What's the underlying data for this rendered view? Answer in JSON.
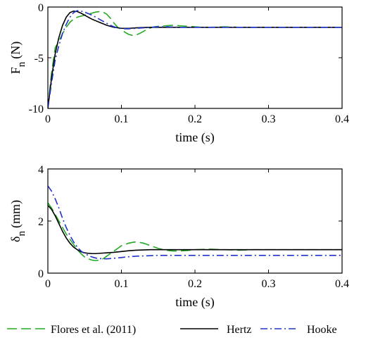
{
  "chart_data": [
    {
      "type": "line",
      "xlabel": "time (s)",
      "ylabel_main": "F",
      "ylabel_sub": "n",
      "ylabel_unit": "(N)",
      "xlim": [
        0,
        0.4
      ],
      "ylim": [
        -10,
        0
      ],
      "xticks": [
        0,
        0.1,
        0.2,
        0.3,
        0.4
      ],
      "xtick_labels": [
        "0",
        "0.1",
        "0.2",
        "0.3",
        "0.4"
      ],
      "yticks": [
        -10,
        -5,
        0
      ],
      "ytick_labels": [
        "-10",
        "-5",
        "0"
      ],
      "grid": false,
      "series": [
        {
          "name": "Flores et al. (2011)",
          "color": "#22aa22",
          "dash": "dashed",
          "x": [
            0,
            0.005,
            0.01,
            0.015,
            0.02,
            0.025,
            0.03,
            0.035,
            0.04,
            0.045,
            0.05,
            0.055,
            0.06,
            0.065,
            0.07,
            0.075,
            0.08,
            0.085,
            0.09,
            0.095,
            0.1,
            0.105,
            0.11,
            0.115,
            0.12,
            0.125,
            0.13,
            0.135,
            0.14,
            0.145,
            0.15,
            0.16,
            0.17,
            0.18,
            0.19,
            0.2,
            0.21,
            0.22,
            0.23,
            0.24,
            0.25,
            0.26,
            0.28,
            0.3,
            0.35,
            0.4
          ],
          "y": [
            -10,
            -6.5,
            -4.0,
            -3.4,
            -2.6,
            -2.0,
            -1.5,
            -1.2,
            -1.0,
            -0.9,
            -0.8,
            -0.7,
            -0.6,
            -0.5,
            -0.45,
            -0.5,
            -0.7,
            -1.1,
            -1.6,
            -2.0,
            -2.2,
            -2.5,
            -2.7,
            -2.8,
            -2.75,
            -2.6,
            -2.4,
            -2.2,
            -2.05,
            -1.95,
            -1.9,
            -1.85,
            -1.8,
            -1.85,
            -1.9,
            -1.95,
            -2.0,
            -2.0,
            -1.98,
            -1.95,
            -1.97,
            -2.0,
            -2.0,
            -2.0,
            -2.0,
            -2.0
          ]
        },
        {
          "name": "Hertz",
          "color": "#000000",
          "dash": "solid",
          "x": [
            0,
            0.005,
            0.01,
            0.015,
            0.02,
            0.025,
            0.03,
            0.035,
            0.04,
            0.045,
            0.05,
            0.055,
            0.06,
            0.065,
            0.07,
            0.075,
            0.08,
            0.085,
            0.09,
            0.095,
            0.1,
            0.11,
            0.12,
            0.13,
            0.14,
            0.15,
            0.16,
            0.18,
            0.2,
            0.25,
            0.3,
            0.35,
            0.4
          ],
          "y": [
            -10,
            -7.0,
            -4.6,
            -3.0,
            -1.8,
            -1.0,
            -0.55,
            -0.4,
            -0.45,
            -0.6,
            -0.8,
            -1.0,
            -1.2,
            -1.35,
            -1.5,
            -1.65,
            -1.8,
            -1.9,
            -2.0,
            -2.05,
            -2.1,
            -2.1,
            -2.05,
            -2.02,
            -2.0,
            -2.0,
            -2.0,
            -2.0,
            -2.0,
            -2.0,
            -2.0,
            -2.0,
            -2.0
          ]
        },
        {
          "name": "Hooke",
          "color": "#2233cc",
          "dash": "dashdot",
          "x": [
            0,
            0.005,
            0.01,
            0.015,
            0.02,
            0.025,
            0.03,
            0.035,
            0.04,
            0.045,
            0.05,
            0.055,
            0.06,
            0.065,
            0.07,
            0.075,
            0.08,
            0.085,
            0.09,
            0.095,
            0.1,
            0.105,
            0.11,
            0.115,
            0.12,
            0.13,
            0.14,
            0.15,
            0.16,
            0.18,
            0.2,
            0.25,
            0.3,
            0.35,
            0.4
          ],
          "y": [
            -10,
            -7.5,
            -5.2,
            -3.8,
            -2.6,
            -1.7,
            -1.0,
            -0.55,
            -0.35,
            -0.4,
            -0.5,
            -0.65,
            -0.8,
            -1.0,
            -1.2,
            -1.4,
            -1.6,
            -1.8,
            -1.95,
            -2.05,
            -2.1,
            -2.15,
            -2.15,
            -2.12,
            -2.1,
            -2.05,
            -2.0,
            -1.95,
            -1.95,
            -2.0,
            -2.0,
            -2.0,
            -2.0,
            -2.0,
            -2.0
          ]
        }
      ]
    },
    {
      "type": "line",
      "xlabel": "time (s)",
      "ylabel_main": "δ",
      "ylabel_sub": "n",
      "ylabel_unit": "(mm)",
      "xlim": [
        0,
        0.4
      ],
      "ylim": [
        0,
        4
      ],
      "xticks": [
        0,
        0.1,
        0.2,
        0.3,
        0.4
      ],
      "xtick_labels": [
        "0",
        "0.1",
        "0.2",
        "0.3",
        "0.4"
      ],
      "yticks": [
        0,
        2,
        4
      ],
      "ytick_labels": [
        "0",
        "2",
        "4"
      ],
      "grid": false,
      "series": [
        {
          "name": "Flores et al. (2011)",
          "color": "#22aa22",
          "dash": "dashed",
          "x": [
            0,
            0.005,
            0.01,
            0.015,
            0.02,
            0.025,
            0.03,
            0.035,
            0.04,
            0.045,
            0.05,
            0.055,
            0.06,
            0.065,
            0.07,
            0.075,
            0.08,
            0.085,
            0.09,
            0.095,
            0.1,
            0.105,
            0.11,
            0.115,
            0.12,
            0.125,
            0.13,
            0.135,
            0.14,
            0.15,
            0.16,
            0.17,
            0.18,
            0.19,
            0.2,
            0.22,
            0.24,
            0.26,
            0.28,
            0.3,
            0.35,
            0.4
          ],
          "y": [
            2.7,
            2.5,
            2.25,
            2.0,
            1.75,
            1.5,
            1.3,
            1.1,
            0.9,
            0.75,
            0.62,
            0.55,
            0.5,
            0.48,
            0.5,
            0.55,
            0.65,
            0.75,
            0.85,
            0.95,
            1.05,
            1.1,
            1.15,
            1.18,
            1.2,
            1.18,
            1.15,
            1.1,
            1.05,
            0.95,
            0.88,
            0.85,
            0.85,
            0.87,
            0.9,
            0.92,
            0.9,
            0.88,
            0.9,
            0.9,
            0.9,
            0.9
          ]
        },
        {
          "name": "Hertz",
          "color": "#000000",
          "dash": "solid",
          "x": [
            0,
            0.005,
            0.01,
            0.015,
            0.02,
            0.025,
            0.03,
            0.035,
            0.04,
            0.045,
            0.05,
            0.055,
            0.06,
            0.065,
            0.07,
            0.075,
            0.08,
            0.085,
            0.09,
            0.1,
            0.11,
            0.12,
            0.13,
            0.14,
            0.15,
            0.16,
            0.18,
            0.2,
            0.25,
            0.3,
            0.35,
            0.4
          ],
          "y": [
            2.6,
            2.45,
            2.2,
            1.9,
            1.6,
            1.35,
            1.15,
            1.0,
            0.9,
            0.82,
            0.78,
            0.76,
            0.75,
            0.75,
            0.76,
            0.77,
            0.78,
            0.79,
            0.8,
            0.83,
            0.86,
            0.88,
            0.89,
            0.9,
            0.9,
            0.9,
            0.9,
            0.9,
            0.9,
            0.9,
            0.9,
            0.9
          ]
        },
        {
          "name": "Hooke",
          "color": "#2233cc",
          "dash": "dashdot",
          "x": [
            0,
            0.005,
            0.01,
            0.015,
            0.02,
            0.025,
            0.03,
            0.035,
            0.04,
            0.045,
            0.05,
            0.055,
            0.06,
            0.065,
            0.07,
            0.075,
            0.08,
            0.085,
            0.09,
            0.1,
            0.11,
            0.12,
            0.13,
            0.14,
            0.15,
            0.16,
            0.18,
            0.2,
            0.25,
            0.3,
            0.35,
            0.4
          ],
          "y": [
            3.35,
            3.15,
            2.85,
            2.5,
            2.1,
            1.75,
            1.45,
            1.2,
            1.0,
            0.85,
            0.75,
            0.68,
            0.62,
            0.58,
            0.56,
            0.55,
            0.55,
            0.56,
            0.57,
            0.6,
            0.63,
            0.65,
            0.66,
            0.67,
            0.68,
            0.68,
            0.68,
            0.68,
            0.68,
            0.68,
            0.68,
            0.68
          ]
        }
      ]
    }
  ],
  "legend": {
    "position": "bottom",
    "items": [
      {
        "label": "Flores et al. (2011)",
        "color": "#22aa22",
        "dash": "dashed"
      },
      {
        "label": "Hertz",
        "color": "#000000",
        "dash": "solid"
      },
      {
        "label": "Hooke",
        "color": "#2233cc",
        "dash": "dashdot"
      }
    ]
  }
}
